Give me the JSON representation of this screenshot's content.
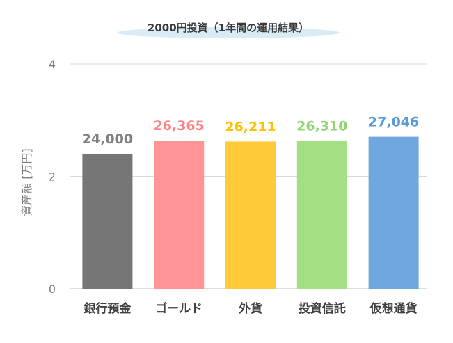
{
  "chart_data": {
    "type": "bar",
    "title": "2000円投資（1年間の運用結果）",
    "ylabel": "資産額 [万円]",
    "xlabel": "",
    "categories": [
      "銀行預金",
      "ゴールド",
      "外貨",
      "投資信託",
      "仮想通貨"
    ],
    "values": [
      24000,
      26365,
      26211,
      26310,
      27046
    ],
    "data_labels": [
      "24,000",
      "26,365",
      "26,211",
      "26,310",
      "27,046"
    ],
    "bar_colors": [
      "#767676",
      "#ff9497",
      "#ffcb38",
      "#a5df84",
      "#6fa8df"
    ],
    "label_colors": [
      "#808080",
      "#ff8488",
      "#ffc000",
      "#92d372",
      "#5b9bd5"
    ],
    "yticks": [
      "0",
      "2",
      "4"
    ],
    "ylim": [
      0,
      40000
    ],
    "grid": true,
    "legend": "none"
  }
}
